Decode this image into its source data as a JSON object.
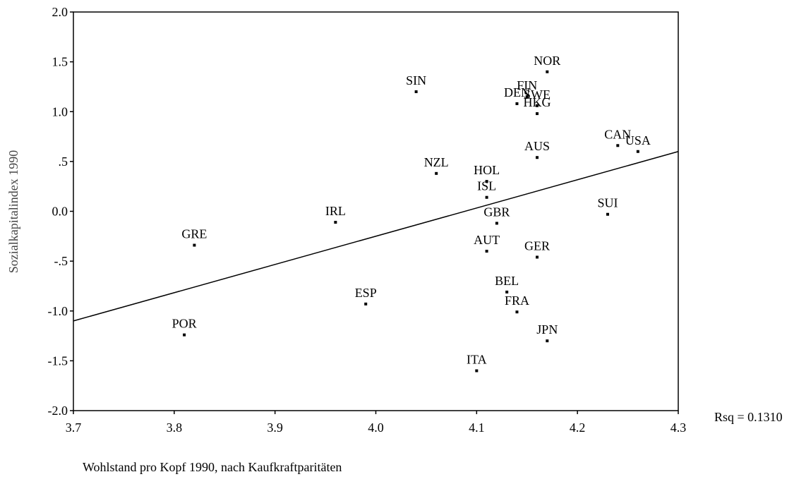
{
  "chart_data": {
    "type": "scatter",
    "xlabel": "Wohlstand pro Kopf 1990, nach Kaufkraftparitäten",
    "ylabel": "Sozialkapitalindex 1990",
    "xlim": [
      3.7,
      4.3
    ],
    "ylim": [
      -2.0,
      2.0
    ],
    "xticks": [
      "3.7",
      "3.8",
      "3.9",
      "4.0",
      "4.1",
      "4.2",
      "4.3"
    ],
    "yticks": [
      "2.0",
      "1.5",
      "1.0",
      ".5",
      "0.0",
      "-.5",
      "-1.0",
      "-1.5",
      "-2.0"
    ],
    "grid": false,
    "points": [
      {
        "label": "NOR",
        "x": 4.17,
        "y": 1.4
      },
      {
        "label": "SIN",
        "x": 4.04,
        "y": 1.2
      },
      {
        "label": "FIN",
        "x": 4.15,
        "y": 1.15
      },
      {
        "label": "DEN",
        "x": 4.14,
        "y": 1.08
      },
      {
        "label": "SWE",
        "x": 4.16,
        "y": 1.06
      },
      {
        "label": "HKG",
        "x": 4.16,
        "y": 0.98
      },
      {
        "label": "CAN",
        "x": 4.24,
        "y": 0.66
      },
      {
        "label": "USA",
        "x": 4.26,
        "y": 0.6
      },
      {
        "label": "AUS",
        "x": 4.16,
        "y": 0.54
      },
      {
        "label": "NZL",
        "x": 4.06,
        "y": 0.38
      },
      {
        "label": "HOL",
        "x": 4.11,
        "y": 0.3
      },
      {
        "label": "ISL",
        "x": 4.11,
        "y": 0.14
      },
      {
        "label": "IRL",
        "x": 3.96,
        "y": -0.11
      },
      {
        "label": "GBR",
        "x": 4.12,
        "y": -0.12
      },
      {
        "label": "SUI",
        "x": 4.23,
        "y": -0.03
      },
      {
        "label": "GRE",
        "x": 3.82,
        "y": -0.34
      },
      {
        "label": "AUT",
        "x": 4.11,
        "y": -0.4
      },
      {
        "label": "GER",
        "x": 4.16,
        "y": -0.46
      },
      {
        "label": "BEL",
        "x": 4.13,
        "y": -0.81
      },
      {
        "label": "ESP",
        "x": 3.99,
        "y": -0.93
      },
      {
        "label": "FRA",
        "x": 4.14,
        "y": -1.01
      },
      {
        "label": "POR",
        "x": 3.81,
        "y": -1.24
      },
      {
        "label": "JPN",
        "x": 4.17,
        "y": -1.3
      },
      {
        "label": "ITA",
        "x": 4.1,
        "y": -1.6
      }
    ],
    "fit_line": {
      "x": [
        3.7,
        4.3
      ],
      "y": [
        -1.1,
        0.6
      ]
    },
    "annotation": "Rsq = 0.1310"
  }
}
